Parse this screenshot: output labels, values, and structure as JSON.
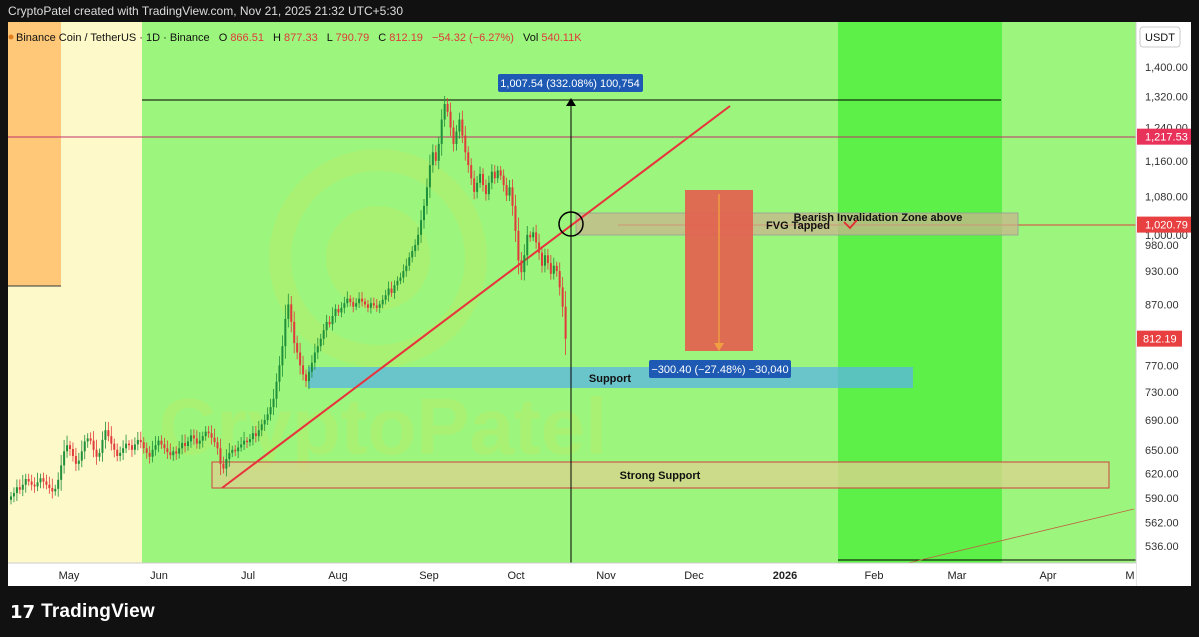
{
  "header": {
    "created_by": "CryptoPatel created with TradingView.com, Nov 21, 2025 21:32 UTC+5:30"
  },
  "legend": {
    "symbol": "Binance Coin / TetherUS · 1D · Binance",
    "o_label": "O",
    "o_value": "866.51",
    "h_label": "H",
    "h_value": "877.33",
    "l_label": "L",
    "l_value": "790.79",
    "c_label": "C",
    "c_value": "812.19",
    "change": "−54.32 (−6.27%)",
    "vol_label": "Vol",
    "vol_value": "540.11K"
  },
  "branding": {
    "logo_text": "TradingView",
    "logo_mark": "17",
    "watermark": "CryptoPatel"
  },
  "colors": {
    "bull": "#1e8f3a",
    "bear": "#e03a3a",
    "zone_green": "#9cf57c",
    "zone_bright": "#5cf048",
    "zone_yellow": "#fdf9c8",
    "zone_orange": "#ffc878",
    "trendline": "#e8323c",
    "support": "#5ab4e6",
    "fvg": "#c8b48c",
    "bear_box": "#e06450"
  },
  "chart_data": {
    "type": "candlestick",
    "price_scale_label": "USDT",
    "y_ticks": [
      536,
      562,
      590,
      620,
      650,
      690,
      730,
      770,
      870,
      930,
      980,
      1080,
      1160,
      1240,
      1320,
      1400
    ],
    "x_ticks": [
      "May",
      "Jun",
      "Jul",
      "Aug",
      "Sep",
      "Oct",
      "Nov",
      "Dec",
      "2026",
      "Feb",
      "Mar",
      "Apr",
      "M"
    ],
    "current_price": "812.19",
    "price_markers": [
      {
        "value": "1,217.53",
        "kind": "line"
      },
      {
        "value": "1,020.79",
        "kind": "line"
      }
    ],
    "overlapped_tick": "1,000.00",
    "annotations": {
      "up_measure": "1,007.54 (332.08%) 100,754",
      "down_measure": "−300.40 (−27.48%) −30,040",
      "invalidation": "Bearish Invalidation Zone above",
      "fvg": "FVG Tapped",
      "support": "Support",
      "strong_support": "Strong Support"
    },
    "series_close": [
      592,
      596,
      603,
      600,
      606,
      613,
      610,
      606,
      604,
      609,
      614,
      610,
      606,
      602,
      598,
      601,
      612,
      630,
      648,
      656,
      651,
      642,
      632,
      636,
      648,
      661,
      665,
      662,
      650,
      641,
      646,
      663,
      676,
      668,
      658,
      650,
      642,
      646,
      652,
      658,
      656,
      650,
      657,
      663,
      660,
      652,
      646,
      641,
      650,
      656,
      662,
      657,
      652,
      647,
      643,
      648,
      645,
      652,
      659,
      655,
      661,
      669,
      665,
      658,
      662,
      668,
      674,
      672,
      666,
      660,
      652,
      632,
      626,
      638,
      646,
      650,
      648,
      653,
      657,
      662,
      660,
      664,
      672,
      668,
      676,
      684,
      690,
      698,
      708,
      720,
      745,
      770,
      800,
      845,
      870,
      840,
      805,
      790,
      770,
      756,
      746,
      760,
      774,
      790,
      800,
      812,
      826,
      840,
      836,
      850,
      862,
      856,
      864,
      872,
      880,
      874,
      866,
      872,
      880,
      875,
      870,
      864,
      872,
      868,
      864,
      870,
      878,
      886,
      898,
      890,
      904,
      912,
      918,
      930,
      940,
      956,
      968,
      980,
      1000,
      1030,
      1060,
      1100,
      1150,
      1180,
      1160,
      1200,
      1260,
      1300,
      1280,
      1240,
      1200,
      1230,
      1260,
      1220,
      1180,
      1150,
      1120,
      1090,
      1110,
      1130,
      1105,
      1085,
      1110,
      1135,
      1120,
      1138,
      1126,
      1105,
      1082,
      1100,
      1060,
      1008,
      950,
      928,
      960,
      1000,
      995,
      1005,
      985,
      965,
      940,
      960,
      945,
      925,
      940,
      930,
      900,
      866,
      812
    ]
  }
}
